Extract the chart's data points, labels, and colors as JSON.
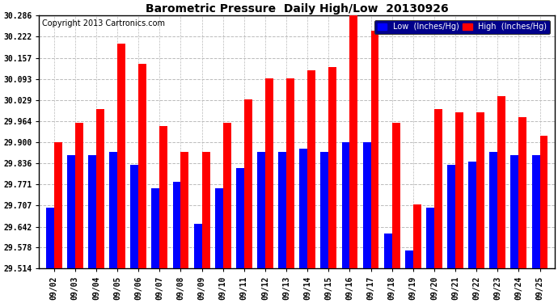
{
  "title": "Barometric Pressure  Daily High/Low  20130926",
  "copyright": "Copyright 2013 Cartronics.com",
  "legend_low": "Low  (Inches/Hg)",
  "legend_high": "High  (Inches/Hg)",
  "dates": [
    "09/02",
    "09/03",
    "09/04",
    "09/05",
    "09/06",
    "09/07",
    "09/08",
    "09/09",
    "09/10",
    "09/11",
    "09/12",
    "09/13",
    "09/14",
    "09/15",
    "09/16",
    "09/17",
    "09/18",
    "09/19",
    "09/20",
    "09/21",
    "09/22",
    "09/23",
    "09/24",
    "09/25"
  ],
  "low": [
    29.7,
    29.86,
    29.86,
    29.87,
    29.83,
    29.76,
    29.78,
    29.65,
    29.76,
    29.82,
    29.87,
    29.87,
    29.88,
    29.87,
    29.9,
    29.9,
    29.62,
    29.57,
    29.7,
    29.83,
    29.84,
    29.87,
    29.86,
    29.86
  ],
  "high": [
    29.9,
    29.96,
    30.0,
    30.2,
    30.14,
    29.95,
    29.87,
    29.87,
    29.96,
    30.03,
    30.095,
    30.095,
    30.12,
    30.13,
    30.29,
    30.24,
    29.96,
    29.71,
    30.0,
    29.99,
    29.99,
    30.04,
    29.975,
    29.92
  ],
  "ylim_min": 29.514,
  "ylim_max": 30.286,
  "yticks": [
    29.514,
    29.578,
    29.642,
    29.707,
    29.771,
    29.836,
    29.9,
    29.964,
    30.029,
    30.093,
    30.157,
    30.222,
    30.286
  ],
  "bar_color_low": "#0000ff",
  "bar_color_high": "#ff0000",
  "background_color": "#ffffff",
  "grid_color": "#bbbbbb",
  "title_fontsize": 10,
  "copyright_fontsize": 7,
  "tick_fontsize": 7,
  "legend_fontsize": 7,
  "legend_bg": "#00008b",
  "fig_width": 6.9,
  "fig_height": 3.75,
  "dpi": 100
}
